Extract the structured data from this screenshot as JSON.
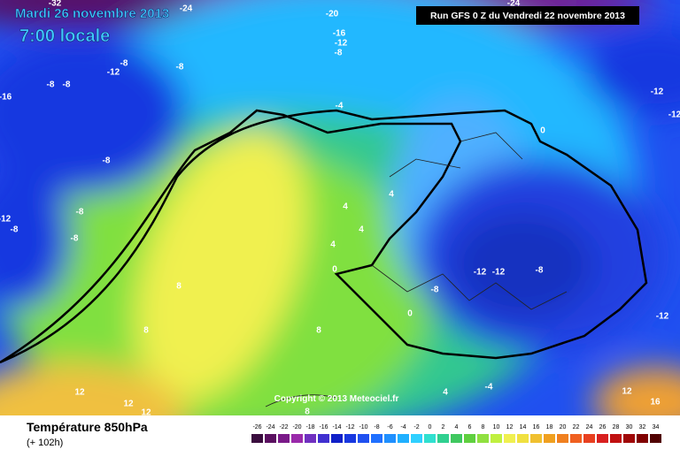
{
  "header": {
    "date": "Mardi 26 novembre 2013",
    "time": "7:00 locale",
    "run": "Run GFS 0 Z du Vendredi 22 novembre 2013"
  },
  "copyright": "Copyright © 2013 Meteociel.fr",
  "footer": {
    "title": "Température 850hPa",
    "lead": "(+ 102h)"
  },
  "contour_labels": [
    -32,
    -24,
    -24,
    -20,
    -16,
    -12,
    -8,
    -8,
    -12,
    -8,
    -8,
    -8,
    -16,
    -4,
    -12,
    -12,
    -8,
    0,
    -8,
    -12,
    -8,
    -8,
    4,
    4,
    4,
    4,
    0,
    -12,
    -12,
    -8,
    -8,
    8,
    8,
    8,
    0,
    -4,
    4,
    12,
    12,
    12,
    8,
    12,
    16,
    -12
  ],
  "scale": {
    "values": [
      -26,
      -24,
      -22,
      -20,
      -18,
      -16,
      -14,
      -12,
      -10,
      -8,
      -6,
      -4,
      -2,
      0,
      2,
      4,
      6,
      8,
      10,
      12,
      14,
      16,
      18,
      20,
      22,
      24,
      26,
      28,
      30,
      32,
      34
    ],
    "colors": [
      "#3a0d3e",
      "#5a1060",
      "#7a1a88",
      "#9a2aaa",
      "#7030c0",
      "#4030d0",
      "#1020c8",
      "#1838e0",
      "#2050f0",
      "#2070ff",
      "#2090ff",
      "#20b0ff",
      "#30d0ff",
      "#30e0d0",
      "#30d090",
      "#40c860",
      "#60d040",
      "#90e040",
      "#c0f040",
      "#f0f050",
      "#f0e040",
      "#f0c030",
      "#f0a020",
      "#f08020",
      "#f06020",
      "#e84020",
      "#d82020",
      "#c01010",
      "#a00808",
      "#800000",
      "#500000"
    ]
  }
}
